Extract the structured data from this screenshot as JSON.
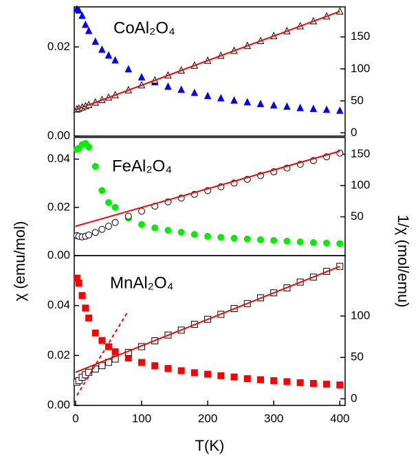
{
  "chart_data": [
    {
      "type": "scatter",
      "title": "CoAl₂O₄",
      "xlim": [
        -2,
        408
      ],
      "ylim": [
        0,
        0.029
      ],
      "y2lim": [
        -5,
        197
      ],
      "yticks": [
        {
          "value": 0,
          "label": "0.00"
        },
        {
          "value": 0.02,
          "label": "0.02"
        }
      ],
      "y2ticks": [
        0,
        50,
        100,
        150
      ],
      "series": [
        {
          "style": "markers",
          "marker": "triangle",
          "filled": true,
          "color": "#0000ff",
          "x": [
            2,
            5,
            10,
            15,
            20,
            30,
            40,
            50,
            60,
            80,
            100,
            120,
            140,
            160,
            180,
            200,
            220,
            240,
            260,
            280,
            300,
            320,
            340,
            360,
            380,
            400
          ],
          "values": [
            0.0285,
            0.0282,
            0.027,
            0.025,
            0.0236,
            0.0212,
            0.0194,
            0.0181,
            0.017,
            0.015,
            0.0132,
            0.0121,
            0.0111,
            0.0104,
            0.0097,
            0.009,
            0.0085,
            0.008,
            0.0076,
            0.0072,
            0.0069,
            0.0066,
            0.0063,
            0.0061,
            0.0059,
            0.0057
          ]
        },
        {
          "style": "markers",
          "marker": "triangle",
          "filled": false,
          "color": "#000000",
          "axis": "y2",
          "x": [
            2,
            5,
            10,
            15,
            20,
            30,
            40,
            50,
            60,
            80,
            100,
            120,
            140,
            160,
            180,
            200,
            220,
            240,
            260,
            280,
            300,
            320,
            340,
            360,
            380,
            400
          ],
          "values": [
            36.8,
            37.9,
            39.9,
            41.8,
            43.7,
            47.6,
            51.4,
            55.3,
            59.1,
            66.8,
            74.5,
            82.2,
            89.9,
            97.6,
            105.3,
            113,
            120.7,
            128.4,
            136.1,
            143.8,
            151.5,
            159.2,
            166.9,
            174.6,
            182.3,
            190
          ]
        },
        {
          "style": "line",
          "color": "#ff0000",
          "axis": "y2",
          "x": [
            0,
            400
          ],
          "values": [
            36,
            190
          ]
        }
      ]
    },
    {
      "type": "scatter",
      "title": "FeAl₂O₄",
      "ylabel": "χ (emu/mol)",
      "y2label": "1/χ (mol/emu)",
      "xlim": [
        -2,
        408
      ],
      "ylim": [
        0,
        0.049
      ],
      "y2lim": [
        -12,
        177
      ],
      "yticks": [
        {
          "value": 0,
          "label": "0.00"
        },
        {
          "value": 0.02,
          "label": "0.02"
        },
        {
          "value": 0.04,
          "label": "0.04"
        }
      ],
      "y2ticks": [
        50,
        100,
        150
      ],
      "series": [
        {
          "style": "markers",
          "marker": "circle",
          "filled": true,
          "color": "#00ee00",
          "x": [
            2,
            5,
            10,
            15,
            20,
            30,
            40,
            50,
            60,
            80,
            100,
            120,
            140,
            160,
            180,
            200,
            220,
            240,
            260,
            280,
            300,
            320,
            340,
            360,
            380,
            400
          ],
          "values": [
            0.044,
            0.0445,
            0.046,
            0.0465,
            0.045,
            0.037,
            0.027,
            0.022,
            0.02,
            0.0155,
            0.0129,
            0.0115,
            0.0105,
            0.0097,
            0.0088,
            0.008,
            0.0076,
            0.0072,
            0.0069,
            0.0066,
            0.0063,
            0.006,
            0.0057,
            0.0054,
            0.0052,
            0.005
          ]
        },
        {
          "style": "markers",
          "marker": "circle",
          "filled": false,
          "color": "#000000",
          "axis": "y2",
          "x": [
            2,
            5,
            10,
            15,
            20,
            30,
            40,
            50,
            60,
            80,
            100,
            120,
            140,
            160,
            180,
            200,
            220,
            240,
            260,
            280,
            300,
            320,
            340,
            360,
            380,
            400
          ],
          "values": [
            20,
            19,
            18,
            19,
            21,
            25,
            30,
            35,
            41,
            51,
            59,
            67,
            74,
            80,
            86,
            92,
            98,
            104,
            110,
            116,
            122,
            128,
            134,
            140,
            146,
            152
          ]
        },
        {
          "style": "line",
          "color": "#ff0000",
          "axis": "y2",
          "x": [
            0,
            400
          ],
          "values": [
            35,
            155
          ]
        }
      ]
    },
    {
      "type": "scatter",
      "title": "MnAl₂O₄",
      "xlabel": "T(K)",
      "xlim": [
        -2,
        408
      ],
      "ylim": [
        0,
        0.06
      ],
      "y2lim": [
        -8,
        173
      ],
      "xticks": [
        0,
        100,
        200,
        300,
        400
      ],
      "yticks": [
        {
          "value": 0,
          "label": "0.00"
        },
        {
          "value": 0.02,
          "label": "0.02"
        },
        {
          "value": 0.04,
          "label": "0.04"
        }
      ],
      "y2ticks": [
        0,
        50,
        100
      ],
      "series": [
        {
          "style": "markers",
          "marker": "square",
          "filled": true,
          "color": "#ff0000",
          "x": [
            2,
            5,
            10,
            15,
            20,
            30,
            40,
            50,
            60,
            80,
            100,
            120,
            140,
            160,
            180,
            200,
            220,
            240,
            260,
            280,
            300,
            320,
            340,
            360,
            380,
            400
          ],
          "values": [
            0.051,
            0.049,
            0.044,
            0.039,
            0.035,
            0.029,
            0.026,
            0.0235,
            0.0215,
            0.019,
            0.0172,
            0.0159,
            0.0148,
            0.0139,
            0.0131,
            0.0125,
            0.0119,
            0.0114,
            0.0107,
            0.0103,
            0.0099,
            0.0095,
            0.0091,
            0.0088,
            0.0085,
            0.0082
          ]
        },
        {
          "style": "markers",
          "marker": "square",
          "filled": false,
          "color": "#000000",
          "axis": "y2",
          "x": [
            2,
            5,
            10,
            15,
            20,
            30,
            40,
            50,
            60,
            80,
            100,
            120,
            140,
            160,
            180,
            200,
            220,
            240,
            260,
            280,
            300,
            320,
            340,
            360,
            380,
            400
          ],
          "values": [
            20,
            22,
            26,
            29,
            32,
            36,
            40,
            44,
            48,
            56,
            63,
            70,
            77,
            83,
            90,
            96,
            102,
            109,
            115,
            122,
            128,
            134,
            141,
            147,
            154,
            160
          ]
        },
        {
          "style": "line",
          "color": "#ff0000",
          "axis": "y2",
          "x": [
            0,
            400
          ],
          "values": [
            32,
            160
          ]
        },
        {
          "style": "dashed",
          "color": "#ff0000",
          "axis": "y2",
          "x": [
            2,
            78
          ],
          "values": [
            4,
            104
          ]
        }
      ]
    }
  ]
}
